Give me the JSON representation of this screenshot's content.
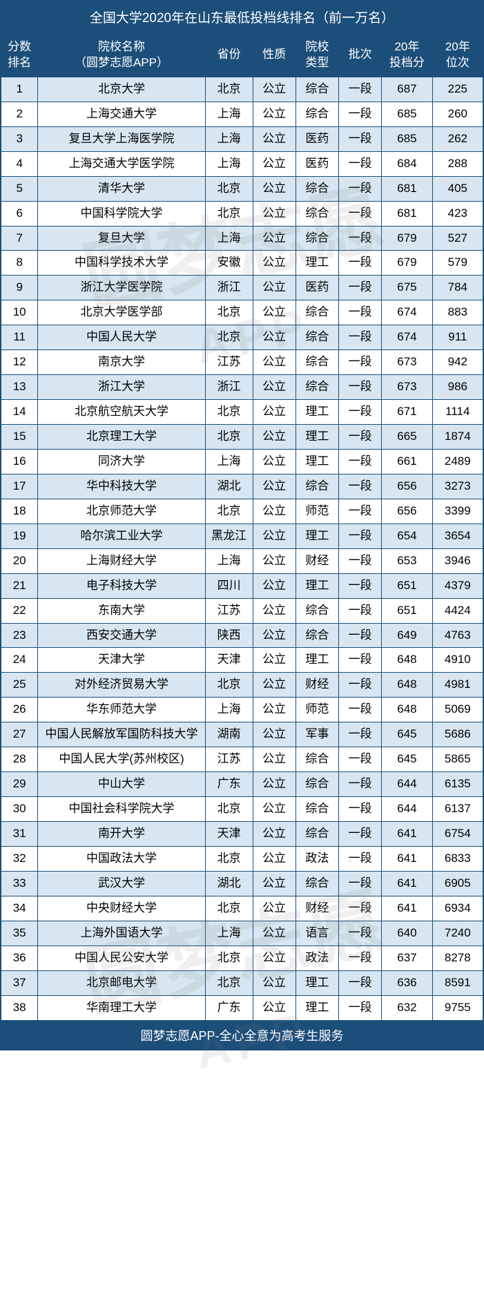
{
  "title": "全国大学2020年在山东最低投档线排名（前一万名）",
  "footer": "圆梦志愿APP-全心全意为高考生服务",
  "watermark_main": "圆梦志愿",
  "watermark_sub": "APP",
  "columns": [
    {
      "key": "rank",
      "label": "分数\n排名"
    },
    {
      "key": "name",
      "label": "院校名称\n（圆梦志愿APP）"
    },
    {
      "key": "prov",
      "label": "省份"
    },
    {
      "key": "nat",
      "label": "性质"
    },
    {
      "key": "type",
      "label": "院校\n类型"
    },
    {
      "key": "batch",
      "label": "批次"
    },
    {
      "key": "score",
      "label": "20年\n投档分"
    },
    {
      "key": "pos",
      "label": "20年\n位次"
    }
  ],
  "rows": [
    [
      "1",
      "北京大学",
      "北京",
      "公立",
      "综合",
      "一段",
      "687",
      "225"
    ],
    [
      "2",
      "上海交通大学",
      "上海",
      "公立",
      "综合",
      "一段",
      "685",
      "260"
    ],
    [
      "3",
      "复旦大学上海医学院",
      "上海",
      "公立",
      "医药",
      "一段",
      "685",
      "262"
    ],
    [
      "4",
      "上海交通大学医学院",
      "上海",
      "公立",
      "医药",
      "一段",
      "684",
      "288"
    ],
    [
      "5",
      "清华大学",
      "北京",
      "公立",
      "综合",
      "一段",
      "681",
      "405"
    ],
    [
      "6",
      "中国科学院大学",
      "北京",
      "公立",
      "综合",
      "一段",
      "681",
      "423"
    ],
    [
      "7",
      "复旦大学",
      "上海",
      "公立",
      "综合",
      "一段",
      "679",
      "527"
    ],
    [
      "8",
      "中国科学技术大学",
      "安徽",
      "公立",
      "理工",
      "一段",
      "679",
      "579"
    ],
    [
      "9",
      "浙江大学医学院",
      "浙江",
      "公立",
      "医药",
      "一段",
      "675",
      "784"
    ],
    [
      "10",
      "北京大学医学部",
      "北京",
      "公立",
      "综合",
      "一段",
      "674",
      "883"
    ],
    [
      "11",
      "中国人民大学",
      "北京",
      "公立",
      "综合",
      "一段",
      "674",
      "911"
    ],
    [
      "12",
      "南京大学",
      "江苏",
      "公立",
      "综合",
      "一段",
      "673",
      "942"
    ],
    [
      "13",
      "浙江大学",
      "浙江",
      "公立",
      "综合",
      "一段",
      "673",
      "986"
    ],
    [
      "14",
      "北京航空航天大学",
      "北京",
      "公立",
      "理工",
      "一段",
      "671",
      "1114"
    ],
    [
      "15",
      "北京理工大学",
      "北京",
      "公立",
      "理工",
      "一段",
      "665",
      "1874"
    ],
    [
      "16",
      "同济大学",
      "上海",
      "公立",
      "理工",
      "一段",
      "661",
      "2489"
    ],
    [
      "17",
      "华中科技大学",
      "湖北",
      "公立",
      "综合",
      "一段",
      "656",
      "3273"
    ],
    [
      "18",
      "北京师范大学",
      "北京",
      "公立",
      "师范",
      "一段",
      "656",
      "3399"
    ],
    [
      "19",
      "哈尔滨工业大学",
      "黑龙江",
      "公立",
      "理工",
      "一段",
      "654",
      "3654"
    ],
    [
      "20",
      "上海财经大学",
      "上海",
      "公立",
      "财经",
      "一段",
      "653",
      "3946"
    ],
    [
      "21",
      "电子科技大学",
      "四川",
      "公立",
      "理工",
      "一段",
      "651",
      "4379"
    ],
    [
      "22",
      "东南大学",
      "江苏",
      "公立",
      "综合",
      "一段",
      "651",
      "4424"
    ],
    [
      "23",
      "西安交通大学",
      "陕西",
      "公立",
      "综合",
      "一段",
      "649",
      "4763"
    ],
    [
      "24",
      "天津大学",
      "天津",
      "公立",
      "理工",
      "一段",
      "648",
      "4910"
    ],
    [
      "25",
      "对外经济贸易大学",
      "北京",
      "公立",
      "财经",
      "一段",
      "648",
      "4981"
    ],
    [
      "26",
      "华东师范大学",
      "上海",
      "公立",
      "师范",
      "一段",
      "648",
      "5069"
    ],
    [
      "27",
      "中国人民解放军国防科技大学",
      "湖南",
      "公立",
      "军事",
      "一段",
      "645",
      "5686"
    ],
    [
      "28",
      "中国人民大学(苏州校区)",
      "江苏",
      "公立",
      "综合",
      "一段",
      "645",
      "5865"
    ],
    [
      "29",
      "中山大学",
      "广东",
      "公立",
      "综合",
      "一段",
      "644",
      "6135"
    ],
    [
      "30",
      "中国社会科学院大学",
      "北京",
      "公立",
      "综合",
      "一段",
      "644",
      "6137"
    ],
    [
      "31",
      "南开大学",
      "天津",
      "公立",
      "综合",
      "一段",
      "641",
      "6754"
    ],
    [
      "32",
      "中国政法大学",
      "北京",
      "公立",
      "政法",
      "一段",
      "641",
      "6833"
    ],
    [
      "33",
      "武汉大学",
      "湖北",
      "公立",
      "综合",
      "一段",
      "641",
      "6905"
    ],
    [
      "34",
      "中央财经大学",
      "北京",
      "公立",
      "财经",
      "一段",
      "641",
      "6934"
    ],
    [
      "35",
      "上海外国语大学",
      "上海",
      "公立",
      "语言",
      "一段",
      "640",
      "7240"
    ],
    [
      "36",
      "中国人民公安大学",
      "北京",
      "公立",
      "政法",
      "一段",
      "637",
      "8278"
    ],
    [
      "37",
      "北京邮电大学",
      "北京",
      "公立",
      "理工",
      "一段",
      "636",
      "8591"
    ],
    [
      "38",
      "华南理工大学",
      "广东",
      "公立",
      "理工",
      "一段",
      "632",
      "9755"
    ]
  ],
  "colors": {
    "header_bg": "#1c4e7a",
    "header_fg": "#ffffff",
    "row_odd_bg": "#d7e6f0",
    "row_even_bg": "#ffffff",
    "border": "#1c4e7a"
  },
  "font_sizes": {
    "title": 19,
    "header": 17,
    "cell": 17,
    "footer": 18
  }
}
